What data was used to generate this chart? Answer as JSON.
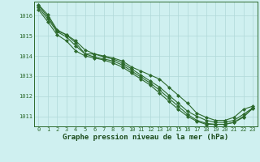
{
  "xlabel": "Graphe pression niveau de la mer (hPa)",
  "bg_color": "#cff0f0",
  "grid_color": "#b0d8d8",
  "line_color": "#2d6a2d",
  "tick_label_color": "#2d6a2d",
  "xlabel_color": "#1a4a1a",
  "ylim": [
    1010.5,
    1016.7
  ],
  "xlim": [
    -0.5,
    23.5
  ],
  "yticks": [
    1011,
    1012,
    1013,
    1014,
    1015,
    1016
  ],
  "xticks": [
    0,
    1,
    2,
    3,
    4,
    5,
    6,
    7,
    8,
    9,
    10,
    11,
    12,
    13,
    14,
    15,
    16,
    17,
    18,
    19,
    20,
    21,
    22,
    23
  ],
  "series": [
    [
      1016.55,
      1016.05,
      1015.3,
      1015.05,
      1014.65,
      1014.1,
      1014.1,
      1014.0,
      1013.9,
      1013.75,
      1013.45,
      1013.25,
      1013.05,
      1012.85,
      1012.45,
      1012.05,
      1011.65,
      1011.15,
      1010.95,
      1010.8,
      1010.8,
      1010.95,
      1011.35,
      1011.5
    ],
    [
      1016.5,
      1015.95,
      1015.25,
      1015.05,
      1014.75,
      1014.3,
      1014.1,
      1013.95,
      1013.85,
      1013.65,
      1013.35,
      1013.05,
      1012.75,
      1012.45,
      1012.05,
      1011.65,
      1011.25,
      1011.0,
      1010.8,
      1010.7,
      1010.7,
      1010.8,
      1011.1,
      1011.42
    ],
    [
      1016.4,
      1015.85,
      1015.2,
      1014.95,
      1014.5,
      1014.1,
      1013.95,
      1013.85,
      1013.75,
      1013.55,
      1013.25,
      1012.95,
      1012.65,
      1012.3,
      1011.9,
      1011.5,
      1011.1,
      1010.8,
      1010.65,
      1010.6,
      1010.6,
      1010.7,
      1011.0,
      1011.38
    ],
    [
      1016.3,
      1015.7,
      1015.05,
      1014.75,
      1014.25,
      1014.0,
      1013.9,
      1013.8,
      1013.65,
      1013.45,
      1013.15,
      1012.85,
      1012.55,
      1012.15,
      1011.75,
      1011.35,
      1011.0,
      1010.75,
      1010.6,
      1010.6,
      1010.6,
      1010.7,
      1010.95,
      1011.42
    ]
  ],
  "marker": "D",
  "markersize": 2.0,
  "linewidth": 0.8,
  "tick_fontsize": 5.0,
  "xlabel_fontsize": 6.5
}
